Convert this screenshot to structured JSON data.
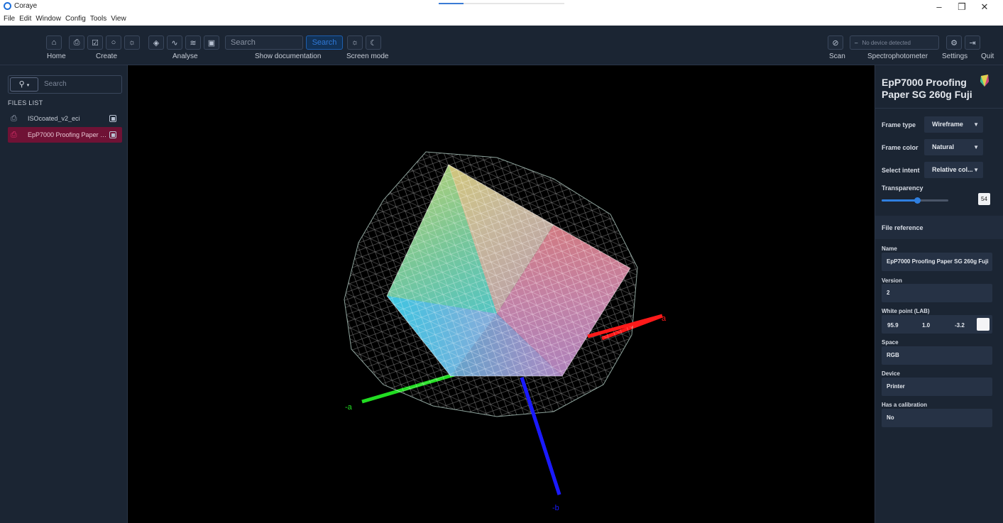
{
  "window": {
    "app_name": "Coraye",
    "progress": 0.2
  },
  "menu": [
    "File",
    "Edit",
    "Window",
    "Config",
    "Tools",
    "View"
  ],
  "toolbar": {
    "home_label": "Home",
    "create_label": "Create",
    "analyse_label": "Analyse",
    "search_placeholder": "Search",
    "search_button": "Search",
    "show_documentation": "Show documentation",
    "screen_mode": "Screen mode",
    "scan_label": "Scan",
    "device_placeholder": "No device detected",
    "spectro_label": "Spectrophotometer",
    "settings_label": "Settings",
    "quit_label": "Quit"
  },
  "sidebar": {
    "search_placeholder": "Search",
    "files_label": "FILES LIST",
    "files": [
      {
        "name": "ISOcoated_v2_eci",
        "active": false
      },
      {
        "name": "EpP7000 Proofing Paper SG 260g Fuji",
        "active": true
      }
    ]
  },
  "viewport": {
    "axis_labels": {
      "a": "a",
      "neg_a": "-a",
      "neg_b": "-b"
    },
    "axis_colors": {
      "a": "#ff1a1a",
      "neg_a": "#22dd22",
      "neg_b": "#1a1aff"
    }
  },
  "panel": {
    "title": "EpP7000 Proofing Paper SG 260g Fuji",
    "frame_type_label": "Frame type",
    "frame_type_value": "Wireframe",
    "frame_color_label": "Frame color",
    "frame_color_value": "Natural",
    "intent_label": "Select intent",
    "intent_value": "Relative col...",
    "transparency_label": "Transparency",
    "transparency_value": "54",
    "transparency_level": 54,
    "file_reference": "File reference",
    "name_label": "Name",
    "name_value": "EpP7000 Proofing Paper SG 260g Fuji",
    "version_label": "Version",
    "version_value": "2",
    "white_point_label": "White point (LAB)",
    "white_point": [
      "95.9",
      "1.0",
      "-3.2"
    ],
    "space_label": "Space",
    "space_value": "RGB",
    "device_label": "Device",
    "device_value": "Printer",
    "calibration_label": "Has a calibration",
    "calibration_value": "No"
  }
}
